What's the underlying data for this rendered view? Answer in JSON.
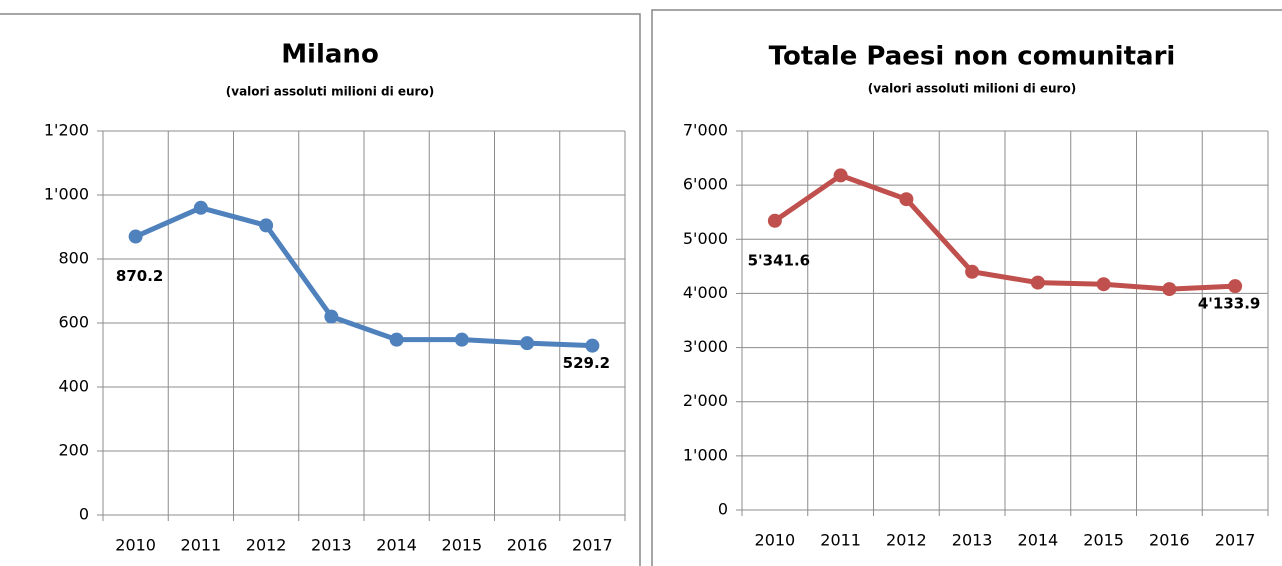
{
  "chart_data": [
    {
      "type": "line",
      "title": "Milano",
      "subtitle": "(valori assoluti milioni di euro)",
      "categories": [
        "2010",
        "2011",
        "2012",
        "2013",
        "2014",
        "2015",
        "2016",
        "2017"
      ],
      "series": [
        {
          "name": "Milano",
          "color": "#4f81bd",
          "values": [
            870.2,
            960,
            905,
            620,
            548,
            548,
            537,
            529.2
          ],
          "value_labels": [
            "870.2",
            null,
            null,
            null,
            null,
            null,
            null,
            "529.2"
          ]
        }
      ],
      "ylim": [
        0,
        1200
      ],
      "yticks": [
        0,
        200,
        400,
        600,
        800,
        {
          "value": 1000,
          "label": "1'000"
        },
        {
          "value": 1200,
          "label": "1'200"
        }
      ],
      "grid": true
    },
    {
      "type": "line",
      "title": "Totale Paesi non comunitari",
      "subtitle": "(valori assoluti milioni di euro)",
      "categories": [
        "2010",
        "2011",
        "2012",
        "2013",
        "2014",
        "2015",
        "2016",
        "2017"
      ],
      "series": [
        {
          "name": "Totale Paesi non comunitari",
          "color": "#c0504d",
          "values": [
            5341.6,
            6180,
            5740,
            4400,
            4200,
            4170,
            4080,
            4133.9
          ],
          "value_labels": [
            "5'341.6",
            null,
            null,
            null,
            null,
            null,
            null,
            "4'133.9"
          ]
        }
      ],
      "ylim": [
        0,
        7000
      ],
      "yticks": [
        0,
        {
          "value": 1000,
          "label": "1'000"
        },
        {
          "value": 2000,
          "label": "2'000"
        },
        {
          "value": 3000,
          "label": "3'000"
        },
        {
          "value": 4000,
          "label": "4'000"
        },
        {
          "value": 5000,
          "label": "5'000"
        },
        {
          "value": 6000,
          "label": "6'000"
        },
        {
          "value": 7000,
          "label": "7'000"
        }
      ],
      "grid": true
    }
  ]
}
